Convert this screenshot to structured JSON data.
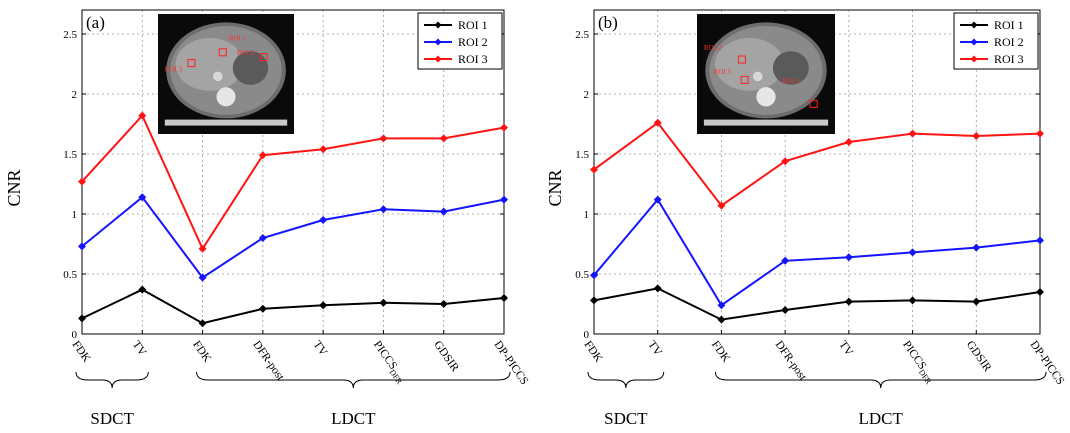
{
  "chart_data": [
    {
      "type": "line",
      "panel_label": "(a)",
      "ylabel": "CNR",
      "ylim": [
        0,
        2.7
      ],
      "yticks": [
        "0",
        "0.5",
        "1",
        "1.5",
        "2",
        "2.5"
      ],
      "categories": [
        "FDK",
        "TV",
        "FDK",
        "DFR-post",
        "TV",
        "PICCS",
        "GDSIR",
        "DP-PICCS"
      ],
      "category_subscripts": [
        "",
        "",
        "",
        "",
        "",
        "DFR",
        "",
        ""
      ],
      "groups": [
        {
          "label": "SDCT",
          "span": [
            0,
            1
          ]
        },
        {
          "label": "LDCT",
          "span": [
            2,
            7
          ]
        }
      ],
      "grid": true,
      "legend_position": "top-right",
      "inset_roi_labels": [
        "ROI 1",
        "ROI 2",
        "ROI 3"
      ],
      "series": [
        {
          "name": "ROI 1",
          "color": "#000000",
          "values": [
            0.13,
            0.37,
            0.09,
            0.21,
            0.24,
            0.26,
            0.25,
            0.3
          ]
        },
        {
          "name": "ROI 2",
          "color": "#1414ff",
          "values": [
            0.73,
            1.14,
            0.47,
            0.8,
            0.95,
            1.04,
            1.02,
            1.12
          ]
        },
        {
          "name": "ROI 3",
          "color": "#ff1414",
          "values": [
            1.27,
            1.82,
            0.71,
            1.49,
            1.54,
            1.63,
            1.63,
            1.72
          ]
        }
      ]
    },
    {
      "type": "line",
      "panel_label": "(b)",
      "ylabel": "CNR",
      "ylim": [
        0,
        2.7
      ],
      "yticks": [
        "0",
        "0.5",
        "1",
        "1.5",
        "2",
        "2.5"
      ],
      "categories": [
        "FDK",
        "TV",
        "FDK",
        "DFR-post",
        "TV",
        "PICCS",
        "GDSIR",
        "DP-PICCS"
      ],
      "category_subscripts": [
        "",
        "",
        "",
        "",
        "",
        "DFR",
        "",
        ""
      ],
      "groups": [
        {
          "label": "SDCT",
          "span": [
            0,
            1
          ]
        },
        {
          "label": "LDCT",
          "span": [
            2,
            7
          ]
        }
      ],
      "grid": true,
      "legend_position": "top-right",
      "inset_roi_labels": [
        "ROI 1",
        "ROI 2",
        "ROI 3"
      ],
      "series": [
        {
          "name": "ROI 1",
          "color": "#000000",
          "values": [
            0.28,
            0.38,
            0.12,
            0.2,
            0.27,
            0.28,
            0.27,
            0.35
          ]
        },
        {
          "name": "ROI 2",
          "color": "#1414ff",
          "values": [
            0.49,
            1.12,
            0.24,
            0.61,
            0.64,
            0.68,
            0.72,
            0.78
          ]
        },
        {
          "name": "ROI 3",
          "color": "#ff1414",
          "values": [
            1.37,
            1.76,
            1.07,
            1.44,
            1.6,
            1.67,
            1.65,
            1.67
          ]
        }
      ]
    }
  ]
}
